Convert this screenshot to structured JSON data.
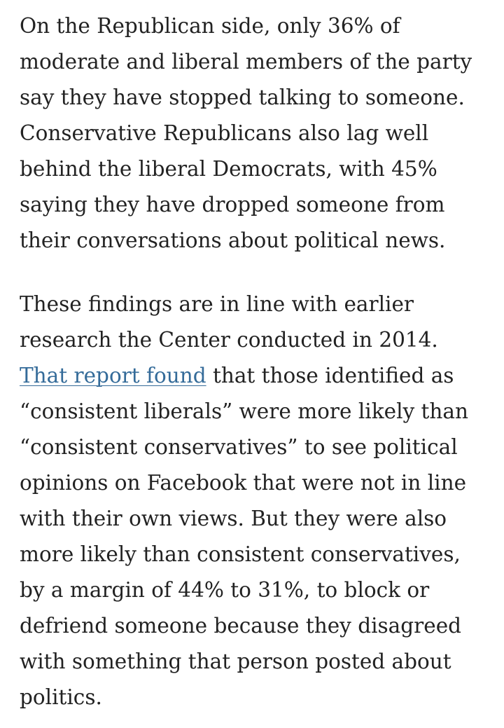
{
  "article": {
    "paragraph_1": "On the Republican side, only 36% of moderate and liberal members of the party say they have stopped talking to someone. Conservative Republicans also lag well behind the liberal Democrats, with 45% saying they have dropped someone from their conversations about political news.",
    "paragraph_2_before_link": "These findings are in line with earlier research the Center conducted in 2014. ",
    "paragraph_2_link": "That report found",
    "paragraph_2_after_link": " that those identified as “consistent liberals” were more likely than “consistent conservatives” to see political opinions on Facebook that were not in line with their own views. But they were also more likely than consistent conservatives, by a margin of 44% to 31%, to block or defriend someone because they disagreed with something that person posted about politics."
  },
  "colors": {
    "text": "#222222",
    "link": "#346b99",
    "background": "#ffffff"
  }
}
